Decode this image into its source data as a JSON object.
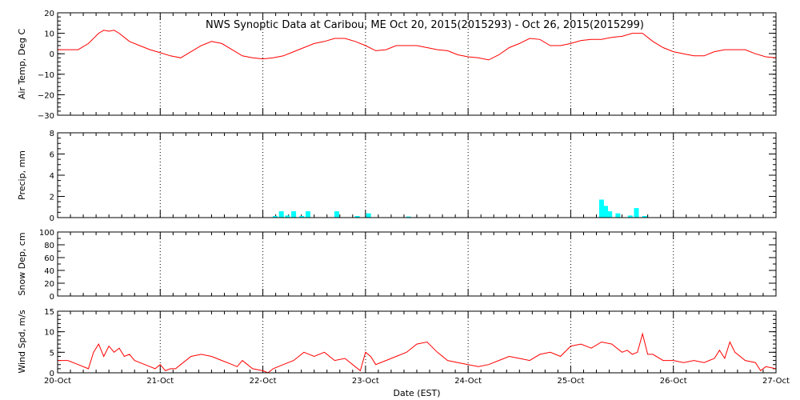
{
  "title": "NWS Synoptic Data at Caribou, ME   Oct 20, 2015(2015293) - Oct 26, 2015(2015299)",
  "xlabel": "Date (EST)",
  "x_ticks": [
    "20-Oct",
    "21-Oct",
    "22-Oct",
    "23-Oct",
    "24-Oct",
    "25-Oct",
    "26-Oct",
    "27-Oct"
  ],
  "colors": {
    "temp_line": "#ff0000",
    "wind_line": "#ff0000",
    "precip_bars": "#00ffff",
    "axes": "#000000",
    "grid": "#000000"
  },
  "chart_data": [
    {
      "type": "line",
      "ylabel": "Air Temp, Deg C",
      "ylim": [
        -30,
        20
      ],
      "y_ticks": [
        "20",
        "10",
        "0",
        "−10",
        "−20",
        "−30"
      ],
      "grid": "dotted vertical at day boundaries",
      "x_units": "days since 20-Oct 00:00 EST",
      "series": [
        {
          "x": [
            0,
            0.1,
            0.2,
            0.3,
            0.4,
            0.45,
            0.5,
            0.55,
            0.6,
            0.65,
            0.7,
            0.8,
            0.9,
            1.0,
            1.1,
            1.2,
            1.3,
            1.4,
            1.5,
            1.6,
            1.7,
            1.8,
            1.9,
            2.0,
            2.1,
            2.2,
            2.3,
            2.4,
            2.5,
            2.6,
            2.7,
            2.8,
            2.9,
            3.0,
            3.1,
            3.2,
            3.3,
            3.4,
            3.5,
            3.6,
            3.7,
            3.8,
            3.9,
            4.0,
            4.1,
            4.2,
            4.3,
            4.4,
            4.5,
            4.6,
            4.7,
            4.8,
            4.9,
            5.0,
            5.1,
            5.2,
            5.3,
            5.4,
            5.5,
            5.6,
            5.65,
            5.7,
            5.8,
            5.9,
            6.0,
            6.1,
            6.2,
            6.3,
            6.4,
            6.5,
            6.6,
            6.7,
            6.8,
            6.9,
            7.0
          ],
          "values": [
            2,
            2,
            2,
            5,
            10,
            11.5,
            11,
            11.5,
            10,
            8,
            6,
            4,
            2,
            0.5,
            -1,
            -2,
            1,
            4,
            6,
            5,
            2,
            -1,
            -2,
            -2.5,
            -2,
            -1,
            1,
            3,
            5,
            6,
            7.5,
            7.5,
            6,
            4,
            1.5,
            2,
            4,
            4,
            4,
            3,
            2,
            1.5,
            -0.5,
            -1.5,
            -2,
            -3,
            -0.5,
            3,
            5,
            7.5,
            7,
            4,
            4,
            5,
            6.5,
            7,
            7,
            8,
            8.5,
            10,
            10,
            10,
            6,
            3,
            1,
            0,
            -1,
            -1,
            1,
            2,
            2,
            2,
            0,
            -1.5,
            -2
          ]
        }
      ]
    },
    {
      "type": "bar",
      "ylabel": "Precip, mm",
      "ylim": [
        0,
        8
      ],
      "y_ticks": [
        "8",
        "6",
        "4",
        "2",
        "0"
      ],
      "grid": "dotted vertical at day boundaries",
      "x_units": "days since 20-Oct 00:00 EST",
      "bars": {
        "x": [
          2.12,
          2.18,
          2.24,
          2.3,
          2.38,
          2.44,
          2.72,
          2.92,
          3.03,
          3.42,
          5.3,
          5.34,
          5.38,
          5.46,
          5.58,
          5.64,
          5.72
        ],
        "values": [
          0.15,
          0.6,
          0.2,
          0.6,
          0.15,
          0.6,
          0.6,
          0.15,
          0.4,
          0.1,
          1.7,
          1.1,
          0.6,
          0.4,
          0.2,
          0.9,
          0.15
        ]
      }
    },
    {
      "type": "line",
      "ylabel": "Snow Dep, cm",
      "ylim": [
        0,
        100
      ],
      "y_ticks": [
        "100",
        "80",
        "60",
        "40",
        "20",
        "0"
      ],
      "grid": "dotted vertical at day boundaries",
      "series": []
    },
    {
      "type": "line",
      "ylabel": "Wind Spd, m/s",
      "ylim": [
        0,
        15
      ],
      "y_ticks": [
        "15",
        "10",
        "5",
        "0"
      ],
      "grid": "dotted vertical at day boundaries",
      "x_units": "days since 20-Oct 00:00 EST",
      "series": [
        {
          "x": [
            0,
            0.1,
            0.2,
            0.3,
            0.35,
            0.4,
            0.45,
            0.5,
            0.55,
            0.6,
            0.65,
            0.7,
            0.75,
            0.8,
            0.85,
            0.9,
            0.95,
            1.0,
            1.05,
            1.1,
            1.15,
            1.2,
            1.3,
            1.4,
            1.5,
            1.6,
            1.7,
            1.75,
            1.8,
            1.85,
            1.9,
            2.0,
            2.05,
            2.1,
            2.2,
            2.3,
            2.4,
            2.5,
            2.6,
            2.7,
            2.8,
            2.9,
            2.95,
            3.0,
            3.05,
            3.1,
            3.2,
            3.3,
            3.4,
            3.5,
            3.6,
            3.7,
            3.8,
            3.9,
            4.0,
            4.1,
            4.2,
            4.3,
            4.4,
            4.5,
            4.6,
            4.7,
            4.8,
            4.9,
            5.0,
            5.1,
            5.2,
            5.3,
            5.4,
            5.5,
            5.55,
            5.6,
            5.65,
            5.7,
            5.75,
            5.8,
            5.9,
            6.0,
            6.1,
            6.2,
            6.3,
            6.4,
            6.45,
            6.5,
            6.55,
            6.6,
            6.7,
            6.8,
            6.85,
            6.9,
            7.0
          ],
          "values": [
            3,
            3,
            2,
            1,
            5,
            7,
            4,
            6.5,
            5,
            6,
            4,
            4.5,
            3,
            2.5,
            2,
            1.5,
            1,
            2,
            0.5,
            1,
            1,
            2,
            4,
            4.5,
            4,
            3,
            2,
            1.5,
            3,
            2,
            1,
            0.5,
            0,
            1,
            2,
            3,
            5,
            4,
            5,
            3,
            3.5,
            1.5,
            0.5,
            5,
            4,
            2,
            3,
            4,
            5,
            7,
            7.5,
            5,
            3,
            2.5,
            2,
            1.5,
            2,
            3,
            4,
            3.5,
            3,
            4.5,
            5,
            4,
            6.5,
            7,
            6,
            7.5,
            7,
            5,
            5.5,
            4.5,
            5,
            9.5,
            4.5,
            4.5,
            3,
            3,
            2.5,
            3,
            2.5,
            3.5,
            5.5,
            3.5,
            7.5,
            5,
            3,
            2.5,
            0.5,
            1.5,
            1
          ]
        }
      ]
    }
  ]
}
